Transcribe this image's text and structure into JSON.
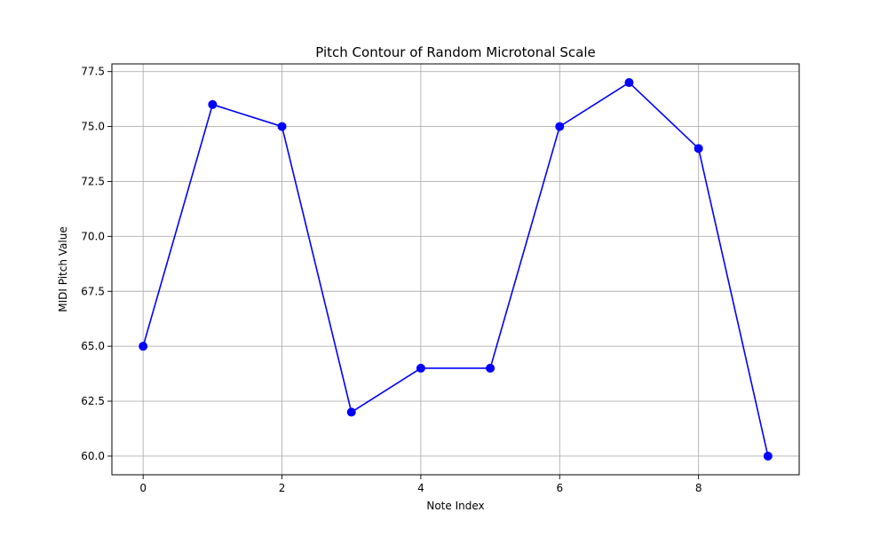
{
  "chart_data": {
    "type": "line",
    "title": "Pitch Contour of Random Microtonal Scale",
    "xlabel": "Note Index",
    "ylabel": "MIDI Pitch Value",
    "x": [
      0,
      1,
      2,
      3,
      4,
      5,
      6,
      7,
      8,
      9
    ],
    "series": [
      {
        "values": [
          65,
          76,
          75,
          62,
          64,
          64,
          75,
          77,
          74,
          60
        ],
        "color": "#0000ff",
        "marker": "circle"
      }
    ],
    "xlim": [
      -0.45,
      9.45
    ],
    "ylim": [
      59.15,
      77.85
    ],
    "xticks": [
      0,
      2,
      4,
      6,
      8
    ],
    "xtick_labels": [
      "0",
      "2",
      "4",
      "6",
      "8"
    ],
    "yticks": [
      60.0,
      62.5,
      65.0,
      67.5,
      70.0,
      72.5,
      75.0,
      77.5
    ],
    "ytick_labels": [
      "60.0",
      "62.5",
      "65.0",
      "67.5",
      "70.0",
      "72.5",
      "75.0",
      "77.5"
    ],
    "grid": true,
    "legend": "none"
  }
}
